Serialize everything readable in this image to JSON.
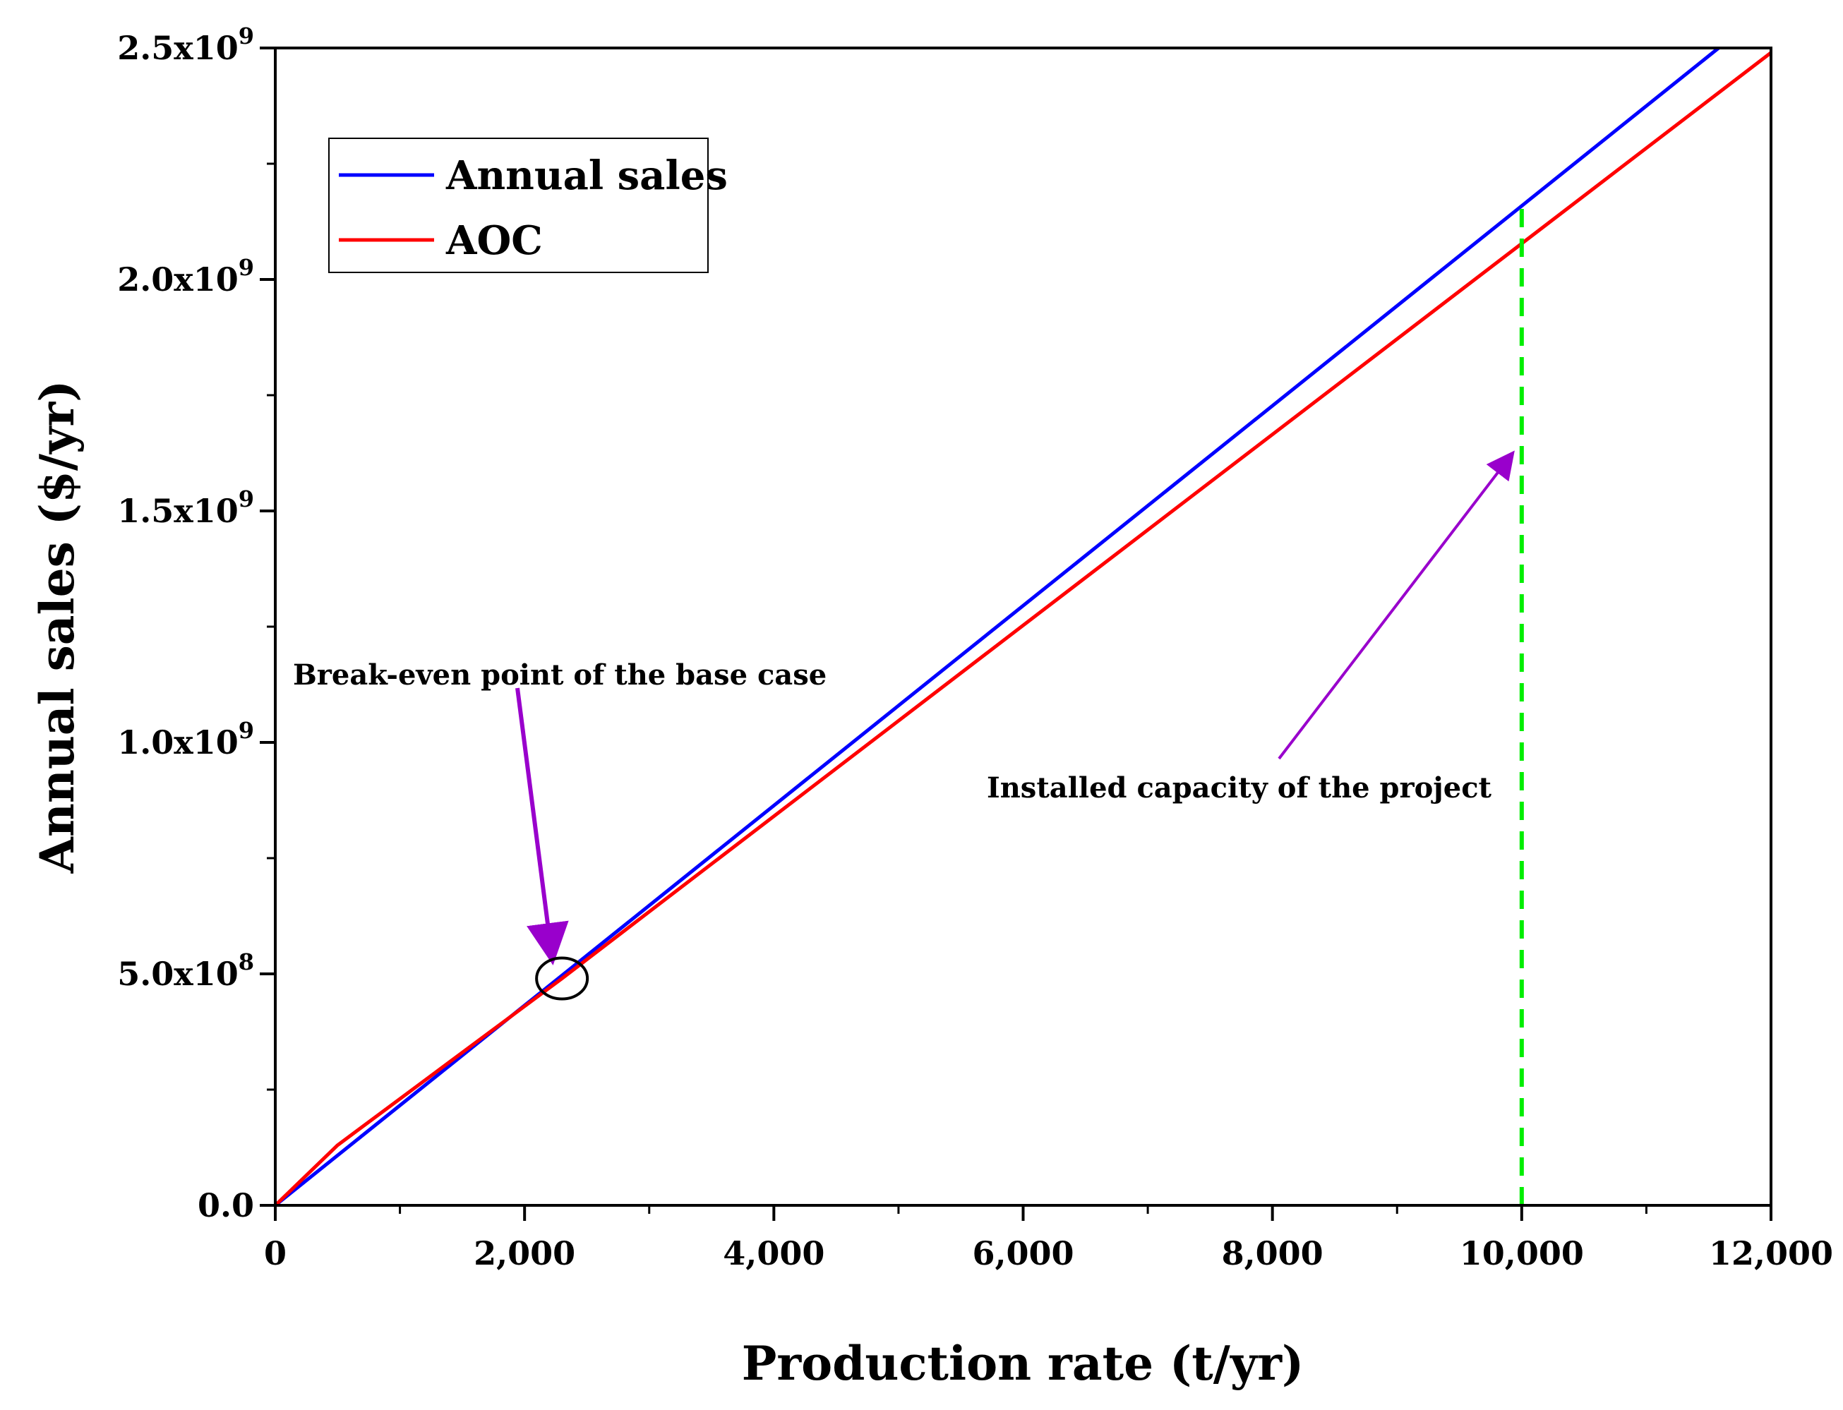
{
  "chart_data": {
    "type": "line",
    "title": "",
    "xlabel": "Production rate (t/yr)",
    "ylabel": "Annual sales ($/yr)",
    "xlim": [
      0,
      12000
    ],
    "ylim": [
      0,
      2500000000
    ],
    "x_major_ticks": [
      0,
      2000,
      4000,
      6000,
      8000,
      10000,
      12000
    ],
    "x_tick_labels": [
      "0",
      "2,000",
      "4,000",
      "6,000",
      "8,000",
      "10,000",
      "12,000"
    ],
    "x_minor_ticks": [
      1000,
      3000,
      5000,
      7000,
      9000,
      11000
    ],
    "y_major_ticks": [
      0,
      500000000,
      1000000000,
      1500000000,
      2000000000,
      2500000000
    ],
    "y_tick_labels": [
      {
        "mantissa": "0.0",
        "exp": ""
      },
      {
        "mantissa": "5.0x10",
        "exp": "8"
      },
      {
        "mantissa": "1.0x10",
        "exp": "9"
      },
      {
        "mantissa": "1.5x10",
        "exp": "9"
      },
      {
        "mantissa": "2.0x10",
        "exp": "9"
      },
      {
        "mantissa": "2.5x10",
        "exp": "9"
      }
    ],
    "y_minor_ticks": [
      250000000,
      750000000,
      1250000000,
      1750000000,
      2250000000
    ],
    "grid": false,
    "legend_position": "top-left",
    "series": [
      {
        "name": "Annual sales",
        "color": "#0000ff",
        "x": [
          0,
          11580
        ],
        "y": [
          0,
          2500000000
        ]
      },
      {
        "name": "AOC",
        "color": "#ff0000",
        "x": [
          0,
          500,
          2300,
          12000
        ],
        "y": [
          0,
          130000000,
          490000000,
          2490000000
        ]
      }
    ],
    "reference_lines": [
      {
        "name": "installed-capacity-line",
        "x": 10000,
        "y_from": 0,
        "y_to": 2160000000,
        "color": "#00ee00",
        "style": "dashed"
      }
    ],
    "annotations": [
      {
        "name": "break-even",
        "text": "Break-even point of  the base case",
        "color": "#9900cc",
        "circle_at": {
          "x": 2300,
          "y": 490000000
        }
      },
      {
        "name": "installed-capacity",
        "text": "Installed capacity of the project",
        "color": "#9900cc",
        "arrow_to": {
          "x": 9950,
          "y": 1630000000
        }
      }
    ]
  }
}
